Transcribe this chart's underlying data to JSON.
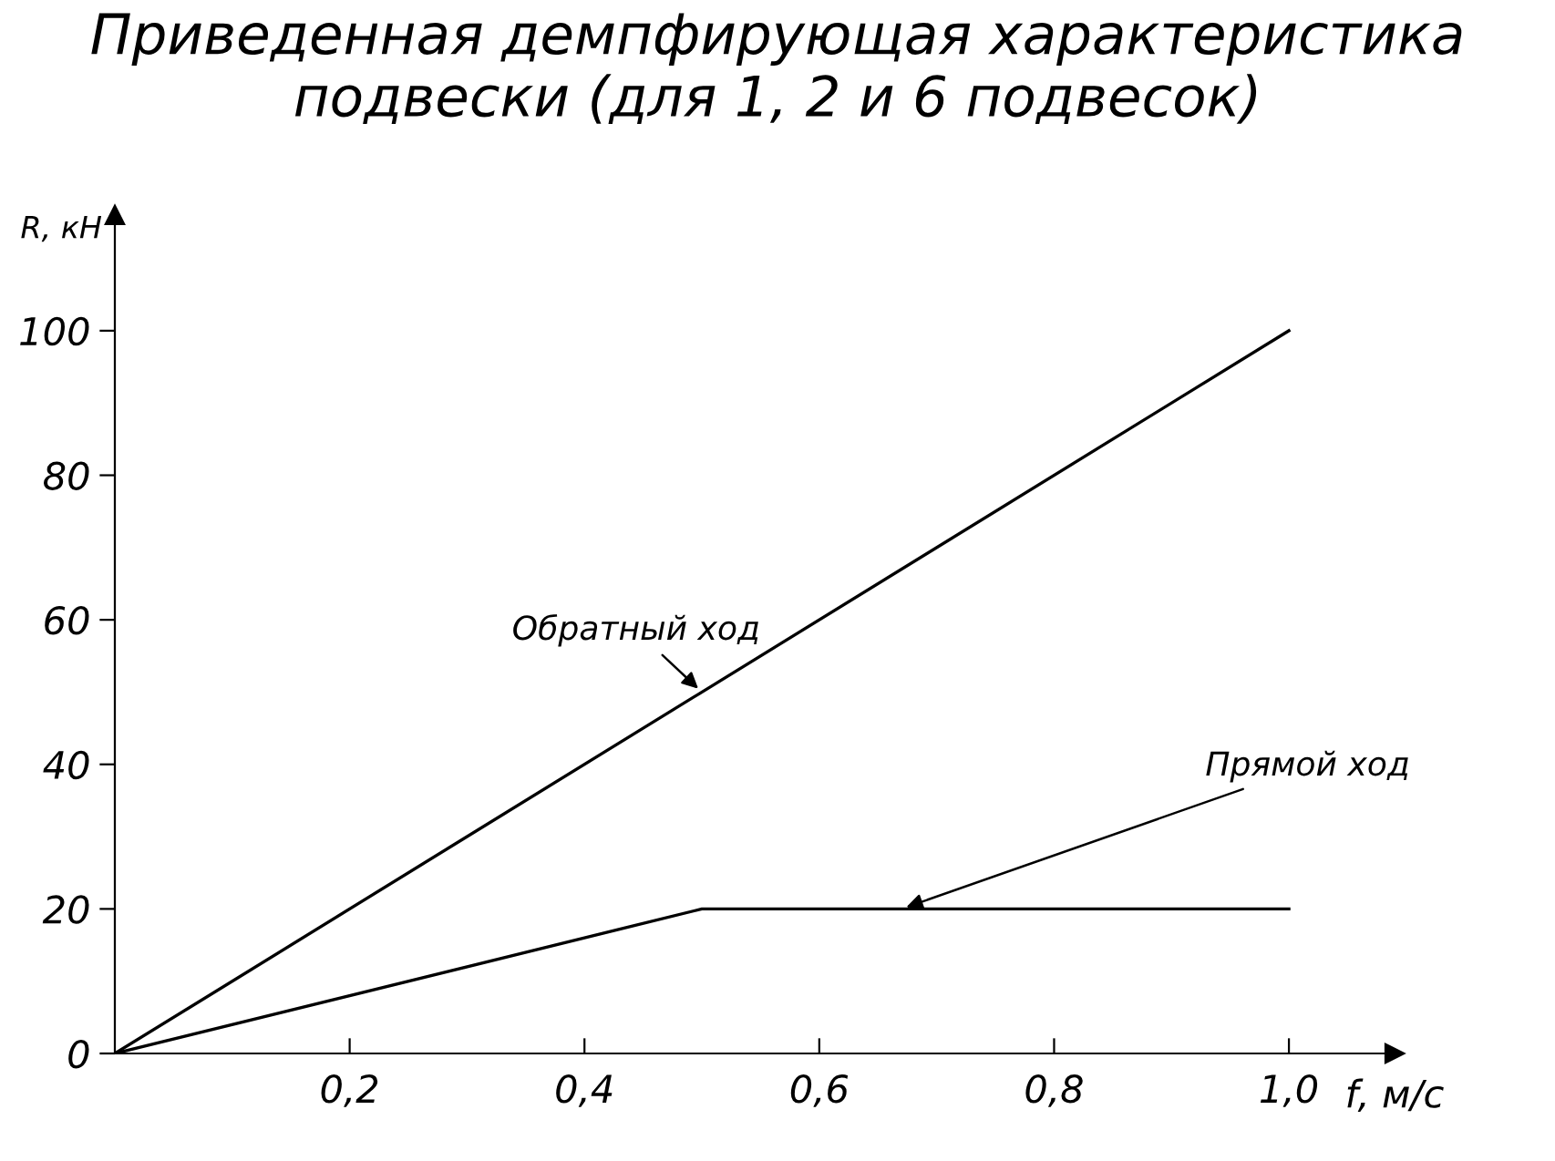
{
  "chart_data": {
    "type": "line",
    "title": "Приведенная демпфирующая характеристика\nподвески (для 1, 2 и 6 подвесок)",
    "xlabel": "f, м/с",
    "ylabel": "R, кН",
    "series": [
      {
        "name": "Обратный ход",
        "color": "#000000",
        "x": [
          0,
          1.0
        ],
        "values": [
          0,
          100
        ]
      },
      {
        "name": "Прямой ход",
        "color": "#000000",
        "x": [
          0,
          0.5,
          1.0
        ],
        "values": [
          0,
          20,
          20
        ]
      }
    ],
    "xlim": [
      0,
      1.09
    ],
    "ylim": [
      0,
      116
    ],
    "xticks": [
      {
        "value": 0.2,
        "label": "0,2"
      },
      {
        "value": 0.4,
        "label": "0,4"
      },
      {
        "value": 0.6,
        "label": "0,6"
      },
      {
        "value": 0.8,
        "label": "0,8"
      },
      {
        "value": 1.0,
        "label": "1,0"
      }
    ],
    "yticks": [
      0,
      20,
      40,
      60,
      80,
      100
    ],
    "grid": false,
    "legend": false,
    "marker": "none",
    "line_style": "solid"
  }
}
